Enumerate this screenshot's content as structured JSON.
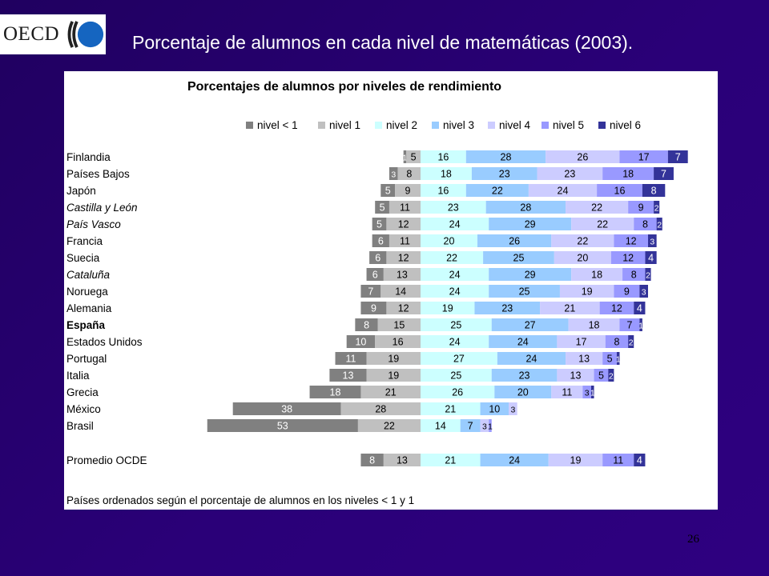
{
  "slide": {
    "title": "Porcentaje de alumnos en cada nivel de matemáticas (2003).",
    "logo_text": "OECD",
    "page_number": "26"
  },
  "colors": {
    "background": "#2a0078",
    "panel": "#ffffff",
    "levels": [
      "#808080",
      "#c0c0c0",
      "#ccffff",
      "#99ccff",
      "#ccccff",
      "#9999ff",
      "#333399"
    ]
  },
  "chart_data": {
    "type": "bar",
    "orientation": "horizontal-diverging-stacked",
    "title": "Porcentajes de alumnos por niveles de rendimiento",
    "legend": [
      "nivel < 1",
      "nivel 1",
      "nivel 2",
      "nivel 3",
      "nivel 4",
      "nivel 5",
      "nivel 6"
    ],
    "legend_position": "top",
    "footnote": "Países ordenados según el porcentaje de alumnos en los niveles < 1 y 1",
    "categories": [
      {
        "name": "Finlandia",
        "values": [
          1,
          5,
          16,
          28,
          26,
          17,
          7
        ],
        "style": "normal"
      },
      {
        "name": "Países Bajos",
        "values": [
          3,
          8,
          18,
          23,
          23,
          18,
          7
        ],
        "style": "normal"
      },
      {
        "name": "Japón",
        "values": [
          5,
          9,
          16,
          22,
          24,
          16,
          8
        ],
        "style": "normal"
      },
      {
        "name": "Castilla y León",
        "values": [
          5,
          11,
          23,
          28,
          22,
          9,
          2
        ],
        "style": "italic"
      },
      {
        "name": "País Vasco",
        "values": [
          5,
          12,
          24,
          29,
          22,
          8,
          2
        ],
        "style": "italic"
      },
      {
        "name": "Francia",
        "values": [
          6,
          11,
          20,
          26,
          22,
          12,
          3
        ],
        "style": "normal"
      },
      {
        "name": "Suecia",
        "values": [
          6,
          12,
          22,
          25,
          20,
          12,
          4
        ],
        "style": "normal"
      },
      {
        "name": "Cataluña",
        "values": [
          6,
          13,
          24,
          29,
          18,
          8,
          2
        ],
        "style": "italic"
      },
      {
        "name": "Noruega",
        "values": [
          7,
          14,
          24,
          25,
          19,
          9,
          3
        ],
        "style": "normal"
      },
      {
        "name": "Alemania",
        "values": [
          9,
          12,
          19,
          23,
          21,
          12,
          4
        ],
        "style": "normal"
      },
      {
        "name": "España",
        "values": [
          8,
          15,
          25,
          27,
          18,
          7,
          1
        ],
        "style": "bold"
      },
      {
        "name": "Estados Unidos",
        "values": [
          10,
          16,
          24,
          24,
          17,
          8,
          2
        ],
        "style": "normal"
      },
      {
        "name": "Portugal",
        "values": [
          11,
          19,
          27,
          24,
          13,
          5,
          1
        ],
        "style": "normal"
      },
      {
        "name": "Italia",
        "values": [
          13,
          19,
          25,
          23,
          13,
          5,
          2
        ],
        "style": "normal"
      },
      {
        "name": "Grecia",
        "values": [
          18,
          21,
          26,
          20,
          11,
          3,
          1
        ],
        "style": "normal"
      },
      {
        "name": "México",
        "values": [
          38,
          28,
          21,
          10,
          3,
          0,
          0
        ],
        "style": "normal"
      },
      {
        "name": "Brasil",
        "values": [
          53,
          22,
          14,
          7,
          3,
          1,
          0
        ],
        "style": "normal"
      },
      {
        "name": "Promedio OCDE",
        "values": [
          8,
          13,
          21,
          24,
          19,
          11,
          4
        ],
        "style": "normal"
      }
    ]
  }
}
